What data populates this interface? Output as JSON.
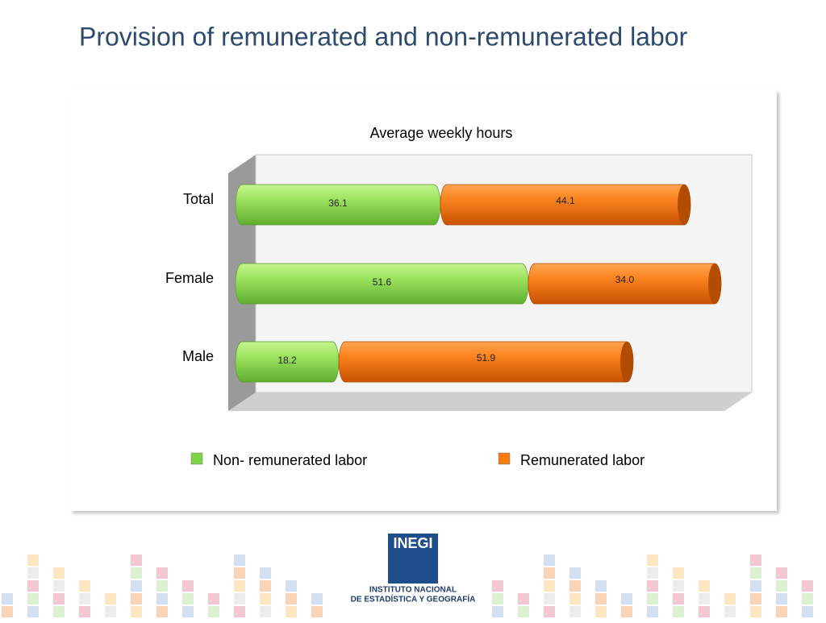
{
  "slide": {
    "title": "Provision of remunerated and non-remunerated labor",
    "logo": {
      "name": "INEGI",
      "line1": "INSTITUTO NACIONAL",
      "line2": "DE ESTADÍSTICA Y GEOGRAFÍA"
    }
  },
  "chart_data": {
    "type": "stacked-barh",
    "title": "Average weekly hours",
    "categories": [
      "Total",
      "Female",
      "Male"
    ],
    "series": [
      {
        "name": "Non- remunerated labor",
        "color": "#7ed348",
        "values": [
          36.1,
          51.6,
          18.2
        ]
      },
      {
        "name": "Remunerated labor",
        "color": "#f57a10",
        "values": [
          44.1,
          34.0,
          51.9
        ],
        "value_labels": [
          "44.1",
          "34.0",
          "51.9"
        ]
      }
    ],
    "xlim": [
      0,
      90
    ],
    "legend": "bottom"
  }
}
